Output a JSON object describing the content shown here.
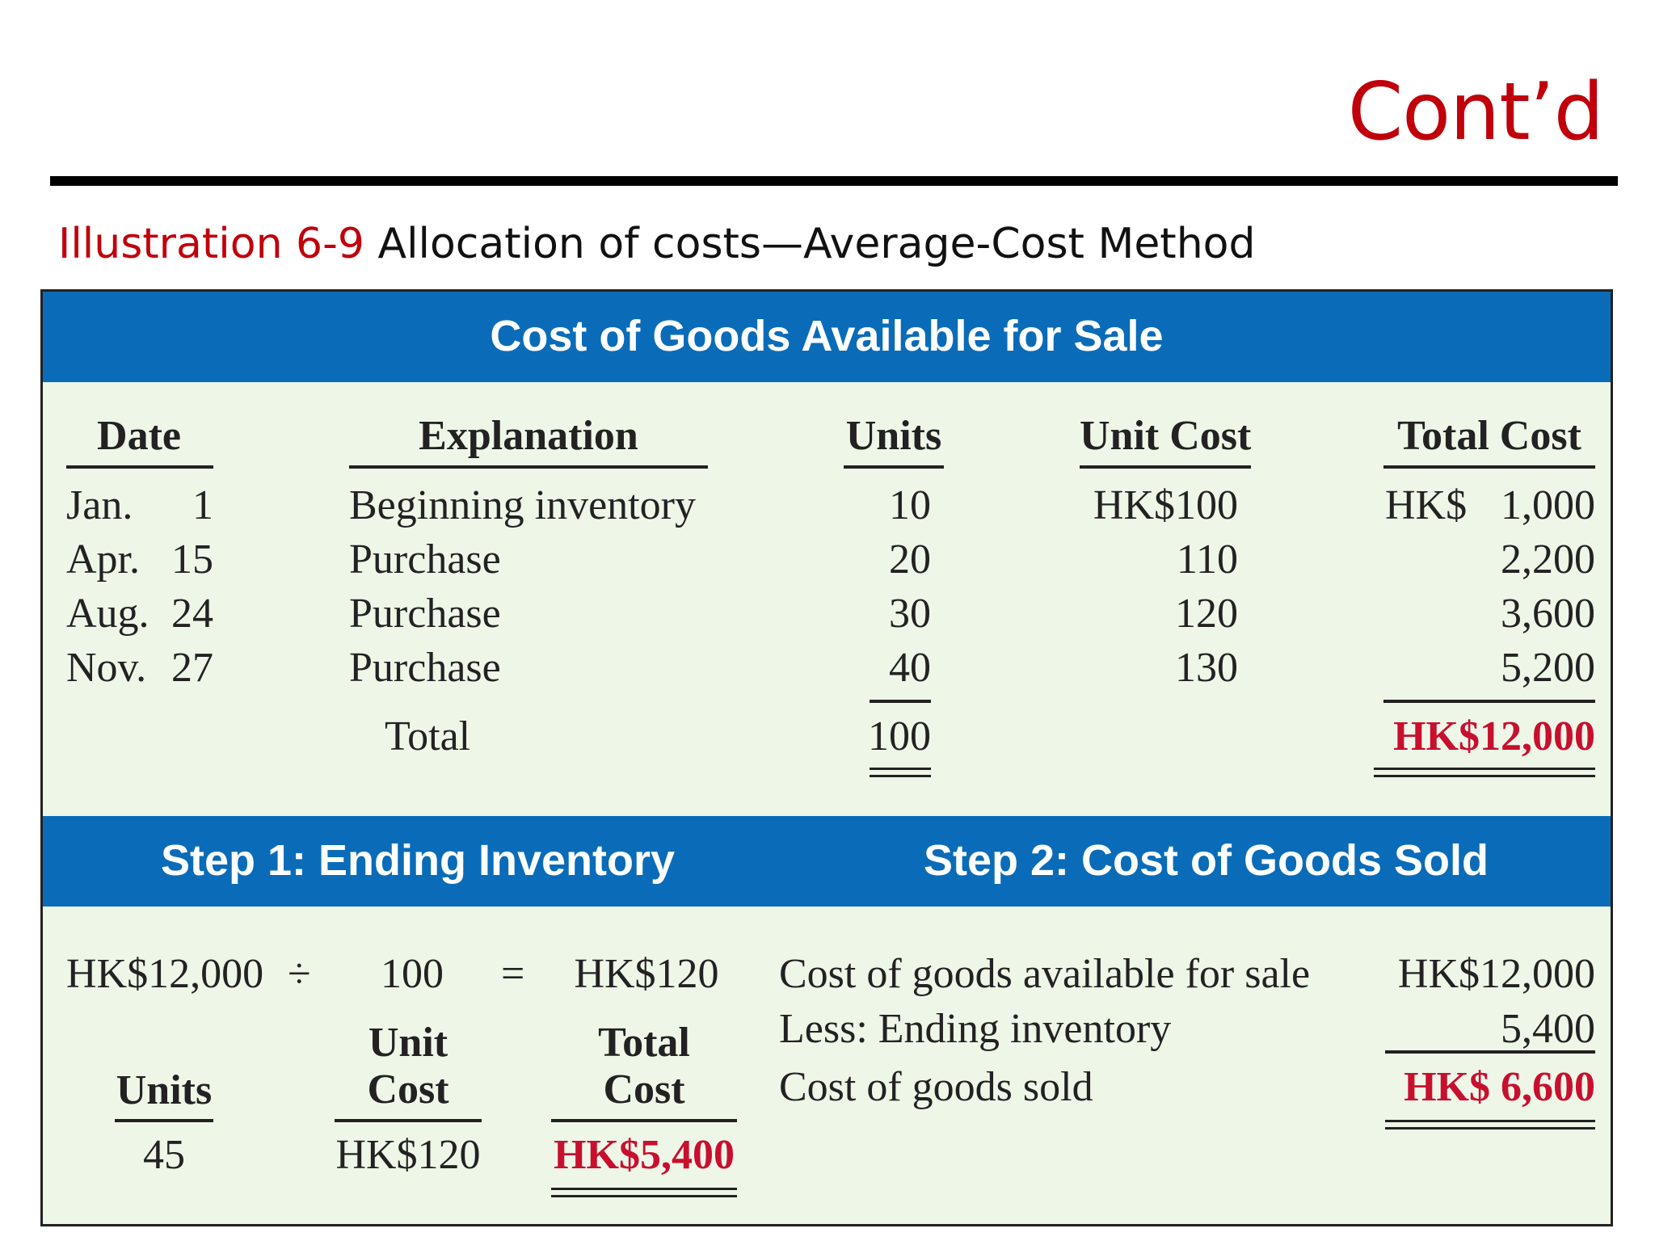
{
  "slide": {
    "title": "Cont’d",
    "caption_label": "Illustration 6-9",
    "caption_text": "Allocation of costs—Average-Cost Method"
  },
  "available": {
    "heading": "Cost of Goods Available for Sale",
    "columns": [
      "Date",
      "Explanation",
      "Units",
      "Unit Cost",
      "Total Cost"
    ],
    "rows": [
      {
        "month": "Jan.",
        "day": "1",
        "explanation": "Beginning inventory",
        "units": "10",
        "unit_cost": "HK$100",
        "total_prefix": "HK$",
        "total": "1,000"
      },
      {
        "month": "Apr.",
        "day": "15",
        "explanation": "Purchase",
        "units": "20",
        "unit_cost": "110",
        "total_prefix": "",
        "total": "2,200"
      },
      {
        "month": "Aug.",
        "day": "24",
        "explanation": "Purchase",
        "units": "30",
        "unit_cost": "120",
        "total_prefix": "",
        "total": "3,600"
      },
      {
        "month": "Nov.",
        "day": "27",
        "explanation": "Purchase",
        "units": "40",
        "unit_cost": "130",
        "total_prefix": "",
        "total": "5,200"
      }
    ],
    "total_label": "Total",
    "total_units": "100",
    "total_cost": "HK$12,000"
  },
  "step1": {
    "heading": "Step 1: Ending Inventory",
    "numerator": "HK$12,000",
    "divide": "÷",
    "denominator": "100",
    "equals": "=",
    "result": "HK$120",
    "col_units": "Units",
    "col_unit_cost_1": "Unit",
    "col_unit_cost_2": "Cost",
    "col_total_cost_1": "Total",
    "col_total_cost_2": "Cost",
    "units": "45",
    "unit_cost": "HK$120",
    "total_cost": "HK$5,400"
  },
  "step2": {
    "heading": "Step 2: Cost of Goods Sold",
    "line1_label": "Cost of goods available for sale",
    "line1_value": "HK$12,000",
    "line2_label": "Less: Ending inventory",
    "line2_value": "5,400",
    "line3_label": "Cost of goods sold",
    "line3_value": "HK$ 6,600"
  },
  "colors": {
    "accent_red": "#c0000b",
    "band_blue": "#0a6cb8",
    "panel_green": "#eef6e8"
  }
}
